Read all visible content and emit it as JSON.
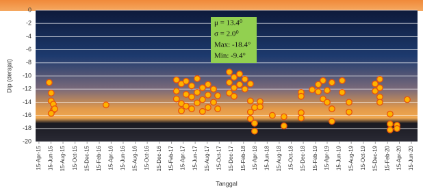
{
  "chart_data": {
    "type": "scatter",
    "x_label": "Tanggal",
    "y_label": "Dip (derajat)",
    "annotations": [
      "μ =  13.4⁰",
      "σ =  2.0⁰",
      "Max: -18.4°",
      "Min: -9.4°"
    ],
    "color": "#ffb300",
    "edge_color": "#e8530c",
    "grid": true,
    "ylim": [
      -20,
      0
    ],
    "yticks": [
      0,
      -2,
      -4,
      -6,
      -8,
      -10,
      -12,
      -14,
      -16,
      -18,
      -20
    ],
    "xlim": [
      "2015-03-29",
      "2020-07-16"
    ],
    "xticks": [
      {
        "value": "2015-04-15",
        "label": "15-Apr-15"
      },
      {
        "value": "2015-06-15",
        "label": "15-Jun-15"
      },
      {
        "value": "2015-08-15",
        "label": "15-Aug-15"
      },
      {
        "value": "2015-10-15",
        "label": "15-Oct-15"
      },
      {
        "value": "2015-12-15",
        "label": "15-Dec-15"
      },
      {
        "value": "2016-02-15",
        "label": "15-Feb-16"
      },
      {
        "value": "2016-04-15",
        "label": "15-Apr-16"
      },
      {
        "value": "2016-06-15",
        "label": "15-Jun-16"
      },
      {
        "value": "2016-08-15",
        "label": "15-Aug-16"
      },
      {
        "value": "2016-10-15",
        "label": "15-Oct-16"
      },
      {
        "value": "2016-12-15",
        "label": "15-Dec-16"
      },
      {
        "value": "2017-02-15",
        "label": "15-Feb-17"
      },
      {
        "value": "2017-04-15",
        "label": "15-Apr-17"
      },
      {
        "value": "2017-06-15",
        "label": "15-Jun-17"
      },
      {
        "value": "2017-08-15",
        "label": "15-Aug-17"
      },
      {
        "value": "2017-10-15",
        "label": "15-Oct-17"
      },
      {
        "value": "2017-12-15",
        "label": "15-Dec-17"
      },
      {
        "value": "2018-02-15",
        "label": "15-Feb-18"
      },
      {
        "value": "2018-04-15",
        "label": "15-Apr-18"
      },
      {
        "value": "2018-06-15",
        "label": "15-Jun-18"
      },
      {
        "value": "2018-08-15",
        "label": "15-Aug-18"
      },
      {
        "value": "2018-10-15",
        "label": "15-Oct-18"
      },
      {
        "value": "2018-12-15",
        "label": "15-Dec-18"
      },
      {
        "value": "2019-02-15",
        "label": "15-Feb-19"
      },
      {
        "value": "2019-04-15",
        "label": "15-Apr-19"
      },
      {
        "value": "2019-06-15",
        "label": "15-Jun-19"
      },
      {
        "value": "2019-08-15",
        "label": "15-Aug-19"
      },
      {
        "value": "2019-10-15",
        "label": "15-Oct-19"
      },
      {
        "value": "2019-12-15",
        "label": "15-Dec-19"
      },
      {
        "value": "2020-02-15",
        "label": "15-Feb-20"
      },
      {
        "value": "2020-04-15",
        "label": "15-Apr-20"
      },
      {
        "value": "2020-06-15",
        "label": "15-Jun-20"
      }
    ],
    "x": [
      "2015-06-06",
      "2015-06-16",
      "2015-06-16",
      "2015-06-27",
      "2015-06-27",
      "2015-07-04",
      "2015-06-16",
      "2016-03-20",
      "2017-03-12",
      "2017-03-12",
      "2017-03-12",
      "2017-04-06",
      "2017-04-06",
      "2017-04-06",
      "2017-04-30",
      "2017-04-30",
      "2017-04-30",
      "2017-05-28",
      "2017-05-28",
      "2017-05-28",
      "2017-06-25",
      "2017-06-25",
      "2017-06-25",
      "2017-07-22",
      "2017-07-22",
      "2017-07-22",
      "2017-08-19",
      "2017-08-19",
      "2017-08-19",
      "2017-09-16",
      "2017-09-16",
      "2017-10-07",
      "2017-10-07",
      "2017-12-05",
      "2017-12-05",
      "2017-12-05",
      "2017-12-29",
      "2017-12-29",
      "2017-12-29",
      "2018-01-26",
      "2018-01-26",
      "2018-02-22",
      "2018-02-22",
      "2018-03-22",
      "2018-03-22",
      "2018-03-22",
      "2018-03-22",
      "2018-04-12",
      "2018-04-12",
      "2018-04-12",
      "2018-05-10",
      "2018-05-10",
      "2018-07-11",
      "2018-09-08",
      "2018-09-08",
      "2018-12-04",
      "2018-12-04",
      "2018-12-04",
      "2018-12-04",
      "2019-01-29",
      "2019-03-01",
      "2019-03-01",
      "2019-03-25",
      "2019-03-25",
      "2019-04-15",
      "2019-04-15",
      "2019-05-09",
      "2019-05-09",
      "2019-05-09",
      "2019-06-30",
      "2019-06-30",
      "2019-08-04",
      "2019-08-04",
      "2019-12-14",
      "2019-12-14",
      "2020-01-07",
      "2020-01-07",
      "2020-01-07",
      "2020-01-07",
      "2020-02-28",
      "2020-02-28",
      "2020-02-28",
      "2020-04-03",
      "2020-04-03",
      "2020-05-25"
    ],
    "values": [
      -11,
      -12.6,
      -13.8,
      -14.3,
      -15.2,
      -15.0,
      -15.7,
      -14.4,
      -10.6,
      -12.3,
      -13.5,
      -11.2,
      -14.2,
      -15.3,
      -10.8,
      -12.8,
      -14.6,
      -11.5,
      -13.2,
      -15.0,
      -10.4,
      -12.5,
      -14.1,
      -11.8,
      -13.6,
      -15.4,
      -11.3,
      -12.9,
      -14.8,
      -12.0,
      -14.0,
      -13.0,
      -15.0,
      -9.4,
      -11.0,
      -12.6,
      -10.2,
      -11.8,
      -13.1,
      -9.7,
      -11.3,
      -10.5,
      -12.0,
      -11.2,
      -13.8,
      -15.5,
      -16.5,
      -14.8,
      -17.2,
      -18.4,
      -13.9,
      -14.7,
      -16.0,
      -16.2,
      -17.6,
      -12.5,
      -13.1,
      -15.6,
      -16.4,
      -12.1,
      -12.4,
      -11.3,
      -13.5,
      -10.7,
      -12.2,
      -14.0,
      -11.0,
      -15.0,
      -16.9,
      -10.7,
      -12.5,
      -14.0,
      -15.5,
      -11.2,
      -12.3,
      -10.5,
      -11.8,
      -13.2,
      -14.0,
      -15.8,
      -17.3,
      -18.2,
      -17.5,
      -18.0,
      -13.6
    ]
  }
}
